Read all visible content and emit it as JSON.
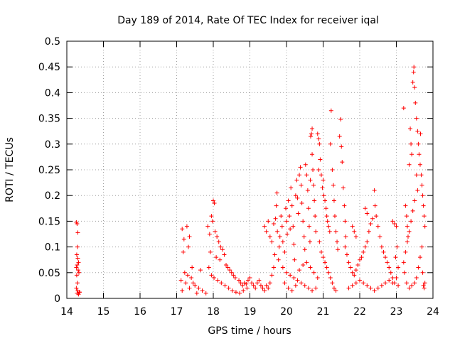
{
  "chart_data": {
    "type": "scatter",
    "title": "Day 189 of 2014, Rate Of TEC Index for receiver iqal",
    "xlabel": "GPS time / hours",
    "ylabel": "ROTI / TECUs",
    "xlim": [
      14,
      24
    ],
    "ylim": [
      0,
      0.5
    ],
    "x_ticks": [
      14,
      15,
      16,
      17,
      18,
      19,
      20,
      21,
      22,
      23,
      24
    ],
    "y_ticks": [
      0,
      0.05,
      0.1,
      0.15,
      0.2,
      0.25,
      0.3,
      0.35,
      0.4,
      0.45,
      0.5
    ],
    "grid": true,
    "marker": "+",
    "color": "#ff0000",
    "series": [
      {
        "name": "ROTI",
        "points": [
          [
            14.26,
            0.148
          ],
          [
            14.28,
            0.145
          ],
          [
            14.3,
            0.128
          ],
          [
            14.29,
            0.1
          ],
          [
            14.27,
            0.085
          ],
          [
            14.3,
            0.078
          ],
          [
            14.32,
            0.07
          ],
          [
            14.28,
            0.065
          ],
          [
            14.26,
            0.06
          ],
          [
            14.31,
            0.055
          ],
          [
            14.33,
            0.05
          ],
          [
            14.27,
            0.045
          ],
          [
            14.29,
            0.03
          ],
          [
            14.26,
            0.02
          ],
          [
            14.3,
            0.015
          ],
          [
            14.34,
            0.012
          ],
          [
            14.28,
            0.01
          ],
          [
            14.32,
            0.008
          ],
          [
            14.35,
            0.012
          ],
          [
            17.15,
            0.135
          ],
          [
            17.2,
            0.115
          ],
          [
            17.28,
            0.14
          ],
          [
            17.35,
            0.12
          ],
          [
            17.32,
            0.1
          ],
          [
            17.18,
            0.09
          ],
          [
            17.22,
            0.05
          ],
          [
            17.3,
            0.045
          ],
          [
            17.4,
            0.04
          ],
          [
            17.12,
            0.035
          ],
          [
            17.25,
            0.03
          ],
          [
            17.45,
            0.03
          ],
          [
            17.5,
            0.025
          ],
          [
            17.35,
            0.02
          ],
          [
            17.6,
            0.02
          ],
          [
            17.15,
            0.015
          ],
          [
            17.7,
            0.015
          ],
          [
            17.55,
            0.01
          ],
          [
            17.8,
            0.01
          ],
          [
            17.42,
            0.06
          ],
          [
            17.65,
            0.055
          ],
          [
            17.85,
            0.14
          ],
          [
            17.9,
            0.125
          ],
          [
            17.95,
            0.16
          ],
          [
            18.0,
            0.19
          ],
          [
            18.03,
            0.185
          ],
          [
            17.98,
            0.15
          ],
          [
            18.05,
            0.13
          ],
          [
            18.1,
            0.12
          ],
          [
            18.15,
            0.11
          ],
          [
            18.2,
            0.1
          ],
          [
            18.25,
            0.095
          ],
          [
            18.3,
            0.085
          ],
          [
            17.92,
            0.09
          ],
          [
            18.08,
            0.08
          ],
          [
            18.18,
            0.075
          ],
          [
            18.35,
            0.065
          ],
          [
            18.4,
            0.06
          ],
          [
            18.45,
            0.055
          ],
          [
            18.5,
            0.05
          ],
          [
            18.55,
            0.045
          ],
          [
            18.6,
            0.04
          ],
          [
            17.88,
            0.06
          ],
          [
            17.95,
            0.045
          ],
          [
            18.02,
            0.04
          ],
          [
            18.12,
            0.035
          ],
          [
            18.22,
            0.03
          ],
          [
            18.32,
            0.025
          ],
          [
            18.42,
            0.02
          ],
          [
            18.52,
            0.015
          ],
          [
            18.62,
            0.012
          ],
          [
            18.72,
            0.01
          ],
          [
            18.82,
            0.015
          ],
          [
            18.92,
            0.02
          ],
          [
            18.7,
            0.035
          ],
          [
            18.75,
            0.03
          ],
          [
            18.8,
            0.025
          ],
          [
            18.85,
            0.03
          ],
          [
            18.9,
            0.028
          ],
          [
            18.95,
            0.035
          ],
          [
            19.0,
            0.04
          ],
          [
            19.05,
            0.03
          ],
          [
            19.1,
            0.025
          ],
          [
            19.15,
            0.02
          ],
          [
            19.2,
            0.03
          ],
          [
            19.25,
            0.035
          ],
          [
            19.3,
            0.025
          ],
          [
            19.35,
            0.02
          ],
          [
            19.4,
            0.015
          ],
          [
            19.45,
            0.025
          ],
          [
            19.5,
            0.02
          ],
          [
            19.55,
            0.03
          ],
          [
            19.6,
            0.045
          ],
          [
            19.65,
            0.06
          ],
          [
            19.4,
            0.14
          ],
          [
            19.45,
            0.13
          ],
          [
            19.5,
            0.15
          ],
          [
            19.55,
            0.12
          ],
          [
            19.6,
            0.11
          ],
          [
            19.65,
            0.145
          ],
          [
            19.7,
            0.155
          ],
          [
            19.75,
            0.13
          ],
          [
            19.8,
            0.1
          ],
          [
            19.72,
            0.18
          ],
          [
            19.74,
            0.205
          ],
          [
            19.68,
            0.085
          ],
          [
            19.78,
            0.075
          ],
          [
            19.82,
            0.12
          ],
          [
            19.85,
            0.16
          ],
          [
            19.88,
            0.14
          ],
          [
            19.9,
            0.11
          ],
          [
            19.95,
            0.09
          ],
          [
            19.98,
            0.175
          ],
          [
            20.0,
            0.15
          ],
          [
            20.02,
            0.125
          ],
          [
            20.05,
            0.19
          ],
          [
            20.08,
            0.16
          ],
          [
            20.1,
            0.135
          ],
          [
            20.12,
            0.215
          ],
          [
            20.15,
            0.18
          ],
          [
            20.18,
            0.14
          ],
          [
            20.2,
            0.105
          ],
          [
            20.22,
            0.075
          ],
          [
            20.25,
            0.2
          ],
          [
            20.28,
            0.23
          ],
          [
            20.3,
            0.195
          ],
          [
            20.32,
            0.165
          ],
          [
            20.35,
            0.24
          ],
          [
            20.38,
            0.255
          ],
          [
            20.4,
            0.22
          ],
          [
            20.42,
            0.185
          ],
          [
            20.45,
            0.15
          ],
          [
            20.48,
            0.12
          ],
          [
            20.5,
            0.095
          ],
          [
            20.52,
            0.26
          ],
          [
            20.55,
            0.24
          ],
          [
            20.58,
            0.21
          ],
          [
            20.6,
            0.175
          ],
          [
            20.62,
            0.14
          ],
          [
            20.64,
            0.11
          ],
          [
            20.66,
            0.315
          ],
          [
            20.68,
            0.32
          ],
          [
            20.7,
            0.28
          ],
          [
            20.72,
            0.25
          ],
          [
            20.74,
            0.22
          ],
          [
            20.76,
            0.19
          ],
          [
            20.78,
            0.16
          ],
          [
            20.8,
            0.13
          ],
          [
            20.7,
            0.33
          ],
          [
            20.65,
            0.23
          ],
          [
            19.9,
            0.06
          ],
          [
            20.0,
            0.05
          ],
          [
            20.1,
            0.045
          ],
          [
            20.2,
            0.04
          ],
          [
            20.3,
            0.035
          ],
          [
            20.4,
            0.03
          ],
          [
            20.5,
            0.025
          ],
          [
            20.6,
            0.02
          ],
          [
            20.7,
            0.015
          ],
          [
            20.8,
            0.02
          ],
          [
            19.95,
            0.03
          ],
          [
            20.05,
            0.02
          ],
          [
            20.15,
            0.015
          ],
          [
            20.25,
            0.025
          ],
          [
            20.35,
            0.055
          ],
          [
            20.45,
            0.065
          ],
          [
            20.55,
            0.07
          ],
          [
            20.65,
            0.06
          ],
          [
            20.75,
            0.05
          ],
          [
            20.85,
            0.04
          ],
          [
            20.85,
            0.32
          ],
          [
            20.88,
            0.31
          ],
          [
            20.9,
            0.3
          ],
          [
            20.92,
            0.27
          ],
          [
            20.88,
            0.25
          ],
          [
            20.95,
            0.24
          ],
          [
            21.0,
            0.23
          ],
          [
            20.98,
            0.215
          ],
          [
            21.02,
            0.2
          ],
          [
            21.05,
            0.19
          ],
          [
            21.08,
            0.175
          ],
          [
            21.1,
            0.16
          ],
          [
            21.12,
            0.15
          ],
          [
            21.15,
            0.14
          ],
          [
            21.18,
            0.13
          ],
          [
            21.2,
            0.3
          ],
          [
            21.22,
            0.365
          ],
          [
            21.25,
            0.25
          ],
          [
            21.28,
            0.22
          ],
          [
            21.3,
            0.19
          ],
          [
            21.32,
            0.16
          ],
          [
            21.35,
            0.13
          ],
          [
            21.38,
            0.11
          ],
          [
            21.4,
            0.095
          ],
          [
            21.45,
            0.315
          ],
          [
            21.48,
            0.348
          ],
          [
            21.5,
            0.295
          ],
          [
            21.52,
            0.265
          ],
          [
            21.55,
            0.215
          ],
          [
            21.58,
            0.18
          ],
          [
            21.6,
            0.15
          ],
          [
            21.62,
            0.12
          ],
          [
            20.9,
            0.11
          ],
          [
            20.95,
            0.09
          ],
          [
            21.0,
            0.08
          ],
          [
            21.05,
            0.07
          ],
          [
            21.1,
            0.06
          ],
          [
            21.15,
            0.05
          ],
          [
            21.2,
            0.04
          ],
          [
            21.25,
            0.03
          ],
          [
            21.3,
            0.02
          ],
          [
            21.35,
            0.015
          ],
          [
            21.6,
            0.1
          ],
          [
            21.65,
            0.085
          ],
          [
            21.7,
            0.07
          ],
          [
            21.75,
            0.06
          ],
          [
            21.8,
            0.05
          ],
          [
            21.85,
            0.045
          ],
          [
            21.9,
            0.055
          ],
          [
            21.95,
            0.065
          ],
          [
            22.0,
            0.075
          ],
          [
            22.05,
            0.08
          ],
          [
            22.1,
            0.09
          ],
          [
            22.15,
            0.1
          ],
          [
            22.2,
            0.11
          ],
          [
            22.25,
            0.13
          ],
          [
            22.3,
            0.145
          ],
          [
            22.35,
            0.155
          ],
          [
            22.4,
            0.21
          ],
          [
            22.42,
            0.18
          ],
          [
            22.45,
            0.16
          ],
          [
            22.5,
            0.14
          ],
          [
            22.55,
            0.12
          ],
          [
            22.6,
            0.1
          ],
          [
            22.65,
            0.09
          ],
          [
            22.7,
            0.08
          ],
          [
            22.75,
            0.07
          ],
          [
            22.8,
            0.06
          ],
          [
            22.85,
            0.05
          ],
          [
            22.9,
            0.04
          ],
          [
            21.8,
            0.14
          ],
          [
            21.85,
            0.13
          ],
          [
            21.9,
            0.12
          ],
          [
            22.15,
            0.175
          ],
          [
            22.2,
            0.165
          ],
          [
            21.7,
            0.02
          ],
          [
            21.8,
            0.025
          ],
          [
            21.9,
            0.03
          ],
          [
            22.0,
            0.035
          ],
          [
            22.1,
            0.03
          ],
          [
            22.2,
            0.025
          ],
          [
            22.3,
            0.02
          ],
          [
            22.4,
            0.015
          ],
          [
            22.5,
            0.02
          ],
          [
            22.6,
            0.025
          ],
          [
            22.7,
            0.03
          ],
          [
            22.8,
            0.035
          ],
          [
            22.9,
            0.03
          ],
          [
            22.9,
            0.15
          ],
          [
            22.95,
            0.145
          ],
          [
            23.0,
            0.14
          ],
          [
            23.02,
            0.1
          ],
          [
            22.98,
            0.08
          ],
          [
            23.05,
            0.06
          ],
          [
            23.0,
            0.04
          ],
          [
            22.95,
            0.03
          ],
          [
            23.05,
            0.025
          ],
          [
            23.2,
            0.37
          ],
          [
            23.25,
            0.18
          ],
          [
            23.28,
            0.16
          ],
          [
            23.3,
            0.14
          ],
          [
            23.32,
            0.12
          ],
          [
            23.35,
            0.26
          ],
          [
            23.38,
            0.33
          ],
          [
            23.4,
            0.3
          ],
          [
            23.42,
            0.28
          ],
          [
            23.45,
            0.42
          ],
          [
            23.47,
            0.44
          ],
          [
            23.48,
            0.45
          ],
          [
            23.5,
            0.41
          ],
          [
            23.52,
            0.38
          ],
          [
            23.55,
            0.35
          ],
          [
            23.58,
            0.325
          ],
          [
            23.6,
            0.3
          ],
          [
            23.62,
            0.28
          ],
          [
            23.65,
            0.26
          ],
          [
            23.66,
            0.32
          ],
          [
            23.68,
            0.24
          ],
          [
            23.7,
            0.22
          ],
          [
            23.72,
            0.2
          ],
          [
            23.74,
            0.18
          ],
          [
            23.76,
            0.16
          ],
          [
            23.78,
            0.14
          ],
          [
            23.55,
            0.24
          ],
          [
            23.58,
            0.21
          ],
          [
            23.5,
            0.19
          ],
          [
            23.45,
            0.17
          ],
          [
            23.4,
            0.15
          ],
          [
            23.35,
            0.13
          ],
          [
            23.3,
            0.11
          ],
          [
            23.25,
            0.09
          ],
          [
            23.2,
            0.07
          ],
          [
            23.22,
            0.05
          ],
          [
            23.28,
            0.03
          ],
          [
            23.35,
            0.02
          ],
          [
            23.42,
            0.025
          ],
          [
            23.5,
            0.03
          ],
          [
            23.55,
            0.04
          ],
          [
            23.6,
            0.06
          ],
          [
            23.65,
            0.08
          ],
          [
            23.7,
            0.1
          ],
          [
            23.72,
            0.05
          ],
          [
            23.74,
            0.025
          ],
          [
            23.76,
            0.02
          ],
          [
            23.78,
            0.03
          ]
        ]
      }
    ]
  }
}
